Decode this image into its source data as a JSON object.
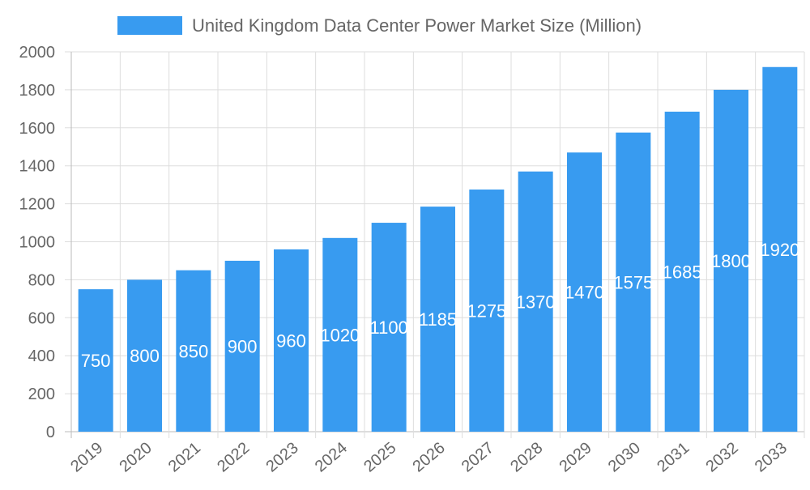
{
  "chart_data": {
    "type": "bar",
    "title": "",
    "xlabel": "",
    "ylabel": "",
    "legend": {
      "position": "top",
      "entries": [
        "United Kingdom Data Center Power Market Size (Million)"
      ]
    },
    "categories": [
      "2019",
      "2020",
      "2021",
      "2022",
      "2023",
      "2024",
      "2025",
      "2026",
      "2027",
      "2028",
      "2029",
      "2030",
      "2031",
      "2032",
      "2033"
    ],
    "series": [
      {
        "name": "United Kingdom Data Center Power Market Size (Million)",
        "values": [
          750,
          800,
          850,
          900,
          960,
          1020,
          1100,
          1185,
          1275,
          1370,
          1470,
          1575,
          1685,
          1800,
          1920
        ]
      }
    ],
    "ylim": [
      0,
      2000
    ],
    "yticks": [
      0,
      200,
      400,
      600,
      800,
      1000,
      1200,
      1400,
      1600,
      1800,
      2000
    ],
    "grid": true,
    "data_labels": true,
    "colors": {
      "bar": "#389bf0",
      "grid": "#dddddd",
      "text": "#666666",
      "label": "#ffffff"
    }
  }
}
